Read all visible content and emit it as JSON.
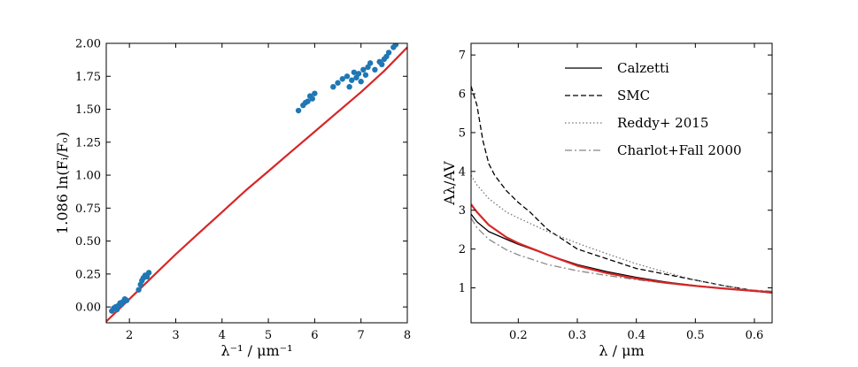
{
  "chart_data": [
    {
      "type": "scatter",
      "xlabel": "λ⁻¹ / μm⁻¹",
      "ylabel": "1.086 ln(Fᵢ/Fₒ)",
      "xlim": [
        1.5,
        8.0
      ],
      "ylim": [
        -0.12,
        2.0
      ],
      "xticks": [
        2,
        3,
        4,
        5,
        6,
        7,
        8
      ],
      "xtick_labels": [
        "2",
        "3",
        "4",
        "5",
        "6",
        "7",
        "8"
      ],
      "yticks": [
        0.0,
        0.25,
        0.5,
        0.75,
        1.0,
        1.25,
        1.5,
        1.75,
        2.0
      ],
      "ytick_labels": [
        "0.00",
        "0.25",
        "0.50",
        "0.75",
        "1.00",
        "1.25",
        "1.50",
        "1.75",
        "2.00"
      ],
      "series": [
        {
          "name": "fit",
          "kind": "line",
          "color": "#d62728",
          "x": [
            1.5,
            2.0,
            2.5,
            3.0,
            3.5,
            4.0,
            4.5,
            5.0,
            5.5,
            6.0,
            6.5,
            7.0,
            7.5,
            8.0
          ],
          "y": [
            -0.11,
            0.06,
            0.23,
            0.4,
            0.56,
            0.72,
            0.88,
            1.03,
            1.18,
            1.33,
            1.48,
            1.63,
            1.79,
            1.97
          ]
        },
        {
          "name": "data",
          "kind": "points",
          "color": "#1f77b4",
          "x": [
            1.62,
            1.66,
            1.7,
            1.73,
            1.76,
            1.8,
            1.83,
            1.86,
            1.9,
            1.94,
            2.2,
            2.24,
            2.27,
            2.3,
            2.34,
            2.38,
            2.42,
            5.65,
            5.75,
            5.8,
            5.85,
            5.9,
            5.95,
            6.0,
            6.4,
            6.5,
            6.6,
            6.7,
            6.75,
            6.8,
            6.85,
            6.9,
            6.95,
            7.0,
            7.05,
            7.1,
            7.15,
            7.2,
            7.3,
            7.4,
            7.45,
            7.5,
            7.55,
            7.6,
            7.7,
            7.75
          ],
          "y": [
            -0.03,
            -0.01,
            0.0,
            -0.02,
            0.01,
            0.03,
            0.02,
            0.04,
            0.06,
            0.05,
            0.13,
            0.17,
            0.2,
            0.22,
            0.24,
            0.23,
            0.26,
            1.49,
            1.53,
            1.55,
            1.56,
            1.6,
            1.58,
            1.62,
            1.67,
            1.7,
            1.73,
            1.75,
            1.67,
            1.72,
            1.78,
            1.74,
            1.77,
            1.71,
            1.8,
            1.76,
            1.82,
            1.85,
            1.8,
            1.86,
            1.84,
            1.88,
            1.9,
            1.93,
            1.97,
            1.99
          ]
        }
      ]
    },
    {
      "type": "line",
      "xlabel": "λ / μm",
      "ylabel": "Aλ/AV",
      "xlim": [
        0.12,
        0.63
      ],
      "ylim": [
        0.1,
        7.3
      ],
      "xticks": [
        0.2,
        0.3,
        0.4,
        0.5,
        0.6
      ],
      "xtick_labels": [
        "0.2",
        "0.3",
        "0.4",
        "0.5",
        "0.6"
      ],
      "yticks": [
        1,
        2,
        3,
        4,
        5,
        6,
        7
      ],
      "ytick_labels": [
        "1",
        "2",
        "3",
        "4",
        "5",
        "6",
        "7"
      ],
      "legend_position": "top-right",
      "series": [
        {
          "name": "Calzetti",
          "color": "#000000",
          "dash": "solid",
          "x": [
            0.12,
            0.13,
            0.15,
            0.18,
            0.2,
            0.25,
            0.3,
            0.35,
            0.4,
            0.45,
            0.5,
            0.55,
            0.6,
            0.63
          ],
          "y": [
            2.9,
            2.7,
            2.45,
            2.25,
            2.12,
            1.85,
            1.6,
            1.42,
            1.27,
            1.15,
            1.06,
            0.98,
            0.91,
            0.87
          ]
        },
        {
          "name": "SMC",
          "color": "#000000",
          "dash": "dashed",
          "x": [
            0.12,
            0.13,
            0.14,
            0.15,
            0.16,
            0.18,
            0.2,
            0.22,
            0.23,
            0.25,
            0.28,
            0.3,
            0.35,
            0.4,
            0.45,
            0.5,
            0.55,
            0.6,
            0.63
          ],
          "y": [
            6.2,
            5.7,
            4.8,
            4.2,
            3.9,
            3.5,
            3.2,
            2.95,
            2.8,
            2.5,
            2.2,
            2.0,
            1.75,
            1.5,
            1.35,
            1.2,
            1.05,
            0.93,
            0.87
          ]
        },
        {
          "name": "Reddy+ 2015",
          "color": "#777777",
          "dash": "dotted",
          "x": [
            0.12,
            0.13,
            0.15,
            0.18,
            0.2,
            0.25,
            0.3,
            0.35,
            0.4,
            0.45,
            0.5,
            0.55,
            0.6,
            0.63
          ],
          "y": [
            3.9,
            3.65,
            3.3,
            2.95,
            2.8,
            2.45,
            2.15,
            1.88,
            1.62,
            1.4,
            1.2,
            1.05,
            0.93,
            0.88
          ]
        },
        {
          "name": "Charlot+Fall 2000",
          "color": "#888888",
          "dash": "dashdot",
          "x": [
            0.12,
            0.13,
            0.15,
            0.18,
            0.2,
            0.25,
            0.3,
            0.35,
            0.4,
            0.45,
            0.5,
            0.55,
            0.6,
            0.63
          ],
          "y": [
            2.8,
            2.55,
            2.25,
            1.98,
            1.85,
            1.6,
            1.44,
            1.32,
            1.21,
            1.12,
            1.05,
            0.99,
            0.94,
            0.91
          ]
        },
        {
          "name": "fit",
          "color": "#d62728",
          "dash": "solid",
          "no_legend": true,
          "x": [
            0.12,
            0.13,
            0.15,
            0.18,
            0.2,
            0.25,
            0.3,
            0.35,
            0.4,
            0.45,
            0.5,
            0.55,
            0.6,
            0.63
          ],
          "y": [
            3.15,
            2.95,
            2.62,
            2.3,
            2.15,
            1.85,
            1.57,
            1.38,
            1.24,
            1.13,
            1.05,
            0.98,
            0.92,
            0.89
          ]
        }
      ]
    }
  ]
}
